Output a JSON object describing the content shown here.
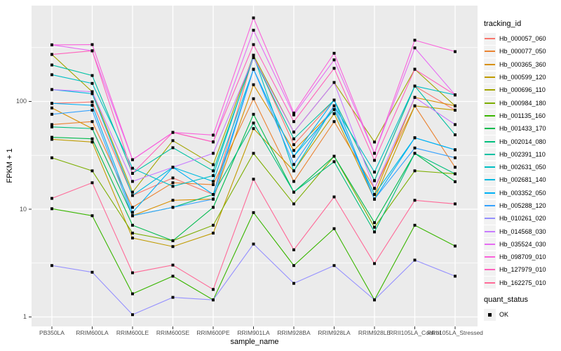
{
  "figure": {
    "y_axis_label": "FPKM + 1",
    "x_axis_label": "sample_name",
    "legend_tracking_title": "tracking_id",
    "legend_quant_title": "quant_status",
    "legend_quant_ok": "OK"
  },
  "style": {
    "panel_bg": "#EBEBEB",
    "grid_color": "#FFFFFF",
    "tick_label_color": "#4D4D4D",
    "legend_key_bg": "#F2F2F2",
    "point_color": "#000000"
  },
  "chart_data": {
    "type": "line",
    "title": "",
    "xlabel": "sample_name",
    "ylabel": "FPKM + 1",
    "y_scale": "log10",
    "ylim": [
      0.82,
      750
    ],
    "y_ticks": [
      1,
      10,
      100
    ],
    "y_minor_gridlines": [
      3.162,
      31.62,
      316.2
    ],
    "grid": "white major and minor gridlines on grey panel",
    "legend_position": "right",
    "point_shape": "filled black square (quant_status = OK)",
    "quant_status_values": [
      "OK"
    ],
    "categories": [
      "PB350LA",
      "RRIM600LA",
      "RRIM600LE",
      "RRIM600SE",
      "RRIM600PE",
      "RRIM901LA",
      "RRIM928BA",
      "RRIM928LA",
      "RRIM928LE",
      "RRII105LA_Control",
      "RRII105LA_Stressed"
    ],
    "series": [
      {
        "name": "Hb_000057_060",
        "color": "#F8766D",
        "values": [
          96,
          99,
          13.4,
          19.5,
          13.7,
          268,
          39.7,
          103,
          18.4,
          139,
          83
        ]
      },
      {
        "name": "Hb_000077_050",
        "color": "#EA8331",
        "values": [
          61,
          65,
          10.4,
          17.6,
          16.9,
          106,
          18.1,
          65,
          15.6,
          91,
          24.5
        ]
      },
      {
        "name": "Hb_000365_360",
        "color": "#D89000",
        "values": [
          87,
          56,
          8.7,
          12.1,
          12.4,
          143,
          35.1,
          84,
          13.7,
          109,
          91
        ]
      },
      {
        "name": "Hb_000599_120",
        "color": "#C09B00",
        "values": [
          44.5,
          42,
          5.4,
          4.5,
          6.0,
          56,
          22.7,
          77,
          12.4,
          91,
          83
        ]
      },
      {
        "name": "Hb_000696_110",
        "color": "#A3A500",
        "values": [
          273,
          123,
          14.4,
          43.3,
          25.9,
          268,
          52,
          150,
          42,
          199,
          91
        ]
      },
      {
        "name": "Hb_000984_180",
        "color": "#7CAE00",
        "values": [
          30,
          22.7,
          6.0,
          5.1,
          7.1,
          33,
          11.2,
          31,
          6.8,
          22.7,
          21.3
        ]
      },
      {
        "name": "Hb_001135_160",
        "color": "#39B600",
        "values": [
          10.1,
          8.7,
          1.64,
          2.39,
          1.44,
          9.3,
          3.0,
          6.6,
          1.44,
          7.1,
          4.55
        ]
      },
      {
        "name": "Hb_001433_170",
        "color": "#00BB4E",
        "values": [
          46.5,
          45,
          7.1,
          5.1,
          10.4,
          76,
          14.4,
          31,
          7.5,
          33,
          18
        ]
      },
      {
        "name": "Hb_002014_080",
        "color": "#00BF7D",
        "values": [
          58,
          56,
          8.7,
          10.4,
          13.7,
          63,
          14.4,
          27.6,
          6.15,
          33,
          21.3
        ]
      },
      {
        "name": "Hb_002391_110",
        "color": "#00C1A3",
        "values": [
          218,
          174,
          21.5,
          37.2,
          22.7,
          255,
          45,
          103,
          18.4,
          139,
          49
        ]
      },
      {
        "name": "Hb_002631_050",
        "color": "#00BFC4",
        "values": [
          177,
          147,
          24,
          16.3,
          20.5,
          268,
          22.7,
          91,
          22.1,
          139,
          115
        ]
      },
      {
        "name": "Hb_002681_140",
        "color": "#00BAE0",
        "values": [
          129,
          118,
          13.4,
          24.5,
          18.1,
          199,
          31,
          84,
          13.7,
          46,
          35.6
        ]
      },
      {
        "name": "Hb_003352_050",
        "color": "#00B0F6",
        "values": [
          96,
          92,
          9.35,
          24.5,
          13.7,
          199,
          31,
          103,
          12.4,
          46,
          35.6
        ]
      },
      {
        "name": "Hb_005288_120",
        "color": "#35A2FF",
        "values": [
          76,
          83,
          8.7,
          10.4,
          12.4,
          199,
          26,
          91,
          12.4,
          37,
          30
        ]
      },
      {
        "name": "Hb_010261_020",
        "color": "#9590FF",
        "values": [
          3.0,
          2.6,
          1.05,
          1.52,
          1.44,
          4.75,
          2.05,
          3.0,
          1.44,
          3.37,
          2.39
        ]
      },
      {
        "name": "Hb_014568_030",
        "color": "#C77CFF",
        "values": [
          129,
          123,
          18.1,
          24.5,
          33,
          255,
          52,
          150,
          15.6,
          109,
          61
        ]
      },
      {
        "name": "Hb_035524_030",
        "color": "#E76BF3",
        "values": [
          335,
          295,
          28.8,
          51.6,
          42.1,
          458,
          75,
          243,
          33,
          314,
          115
        ]
      },
      {
        "name": "Hb_098709_010",
        "color": "#FA62DB",
        "values": [
          335,
          337,
          28.8,
          51.6,
          48.7,
          596,
          78,
          280,
          33,
          370,
          290
        ]
      },
      {
        "name": "Hb_127979_010",
        "color": "#FF62BC",
        "values": [
          273,
          295,
          21.5,
          51.6,
          42.1,
          337,
          65,
          203,
          28.4,
          199,
          115
        ]
      },
      {
        "name": "Hb_162275_010",
        "color": "#FF6A98",
        "values": [
          12.6,
          17.6,
          2.57,
          3.03,
          1.8,
          19,
          4.2,
          13.0,
          3.13,
          12.1,
          11.2
        ]
      }
    ]
  }
}
